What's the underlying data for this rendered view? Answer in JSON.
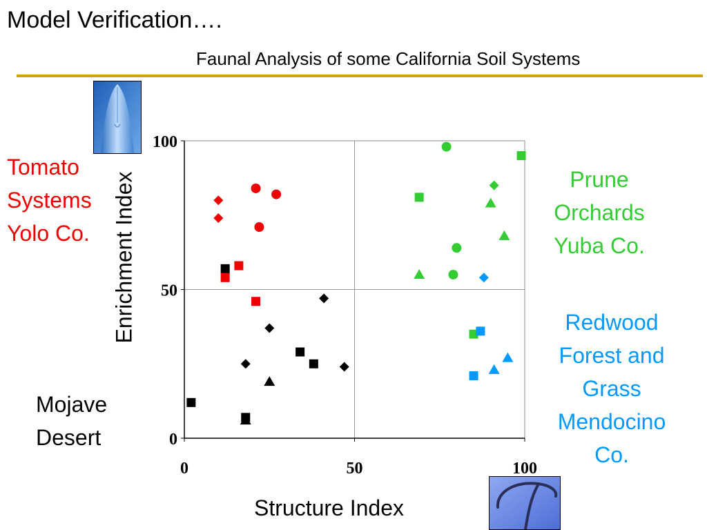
{
  "slide": {
    "title": "Model Verification….",
    "subtitle": "Faunal Analysis of some California Soil Systems",
    "accent_color": "#d4a017"
  },
  "images": {
    "top_photo": "nematode-head-micrograph",
    "bottom_photo": "nematode-curved-body-micrograph"
  },
  "group_labels": {
    "tomato": {
      "lines": [
        "Tomato",
        "Systems",
        "Yolo Co."
      ],
      "color": "#ee0000"
    },
    "prune": {
      "lines": [
        "Prune",
        "Orchards",
        "Yuba Co."
      ],
      "color": "#33cc33"
    },
    "redwood": {
      "lines": [
        "Redwood",
        "Forest and",
        "Grass",
        "Mendocino",
        "Co."
      ],
      "color": "#0099ff"
    },
    "mojave": {
      "lines": [
        "Mojave",
        "Desert"
      ],
      "color": "#000000"
    }
  },
  "chart_data": {
    "type": "scatter",
    "title": "",
    "xlabel": "Structure Index",
    "ylabel": "Enrichment Index",
    "xlim": [
      0,
      100
    ],
    "ylim": [
      0,
      100
    ],
    "xticks": [
      "0",
      "50",
      "100"
    ],
    "yticks": [
      "0",
      "50",
      "100"
    ],
    "grid": "quadrant lines at 50",
    "series": [
      {
        "color": "#ee0000",
        "marker": "circle",
        "points": [
          [
            21,
            84
          ],
          [
            27,
            82
          ],
          [
            22,
            71
          ]
        ]
      },
      {
        "color": "#ee0000",
        "marker": "diamond",
        "points": [
          [
            10,
            80
          ],
          [
            10,
            74
          ]
        ]
      },
      {
        "color": "#ee0000",
        "marker": "square",
        "points": [
          [
            16,
            58
          ],
          [
            12,
            54
          ],
          [
            21,
            46
          ]
        ]
      },
      {
        "color": "#33cc33",
        "marker": "circle",
        "points": [
          [
            77,
            98
          ],
          [
            80,
            64
          ],
          [
            79,
            55
          ]
        ]
      },
      {
        "color": "#33cc33",
        "marker": "diamond",
        "points": [
          [
            91,
            85
          ]
        ]
      },
      {
        "color": "#33cc33",
        "marker": "square",
        "points": [
          [
            99,
            95
          ],
          [
            69,
            81
          ],
          [
            85,
            35
          ]
        ]
      },
      {
        "color": "#33cc33",
        "marker": "triangle",
        "points": [
          [
            90,
            79
          ],
          [
            94,
            68
          ],
          [
            69,
            55
          ]
        ]
      },
      {
        "color": "#0099ff",
        "marker": "diamond",
        "points": [
          [
            88,
            54
          ]
        ]
      },
      {
        "color": "#0099ff",
        "marker": "square",
        "points": [
          [
            87,
            36
          ],
          [
            85,
            21
          ]
        ]
      },
      {
        "color": "#0099ff",
        "marker": "triangle",
        "points": [
          [
            95,
            27
          ],
          [
            91,
            23
          ]
        ]
      },
      {
        "color": "#000000",
        "marker": "square",
        "points": [
          [
            12,
            57
          ],
          [
            34,
            29
          ],
          [
            38,
            25
          ],
          [
            18,
            7
          ],
          [
            2,
            12
          ]
        ]
      },
      {
        "color": "#000000",
        "marker": "diamond",
        "points": [
          [
            41,
            47
          ],
          [
            25,
            37
          ],
          [
            18,
            25
          ],
          [
            47,
            24
          ]
        ]
      },
      {
        "color": "#000000",
        "marker": "triangle",
        "points": [
          [
            25,
            19
          ],
          [
            18,
            6
          ]
        ]
      }
    ]
  }
}
